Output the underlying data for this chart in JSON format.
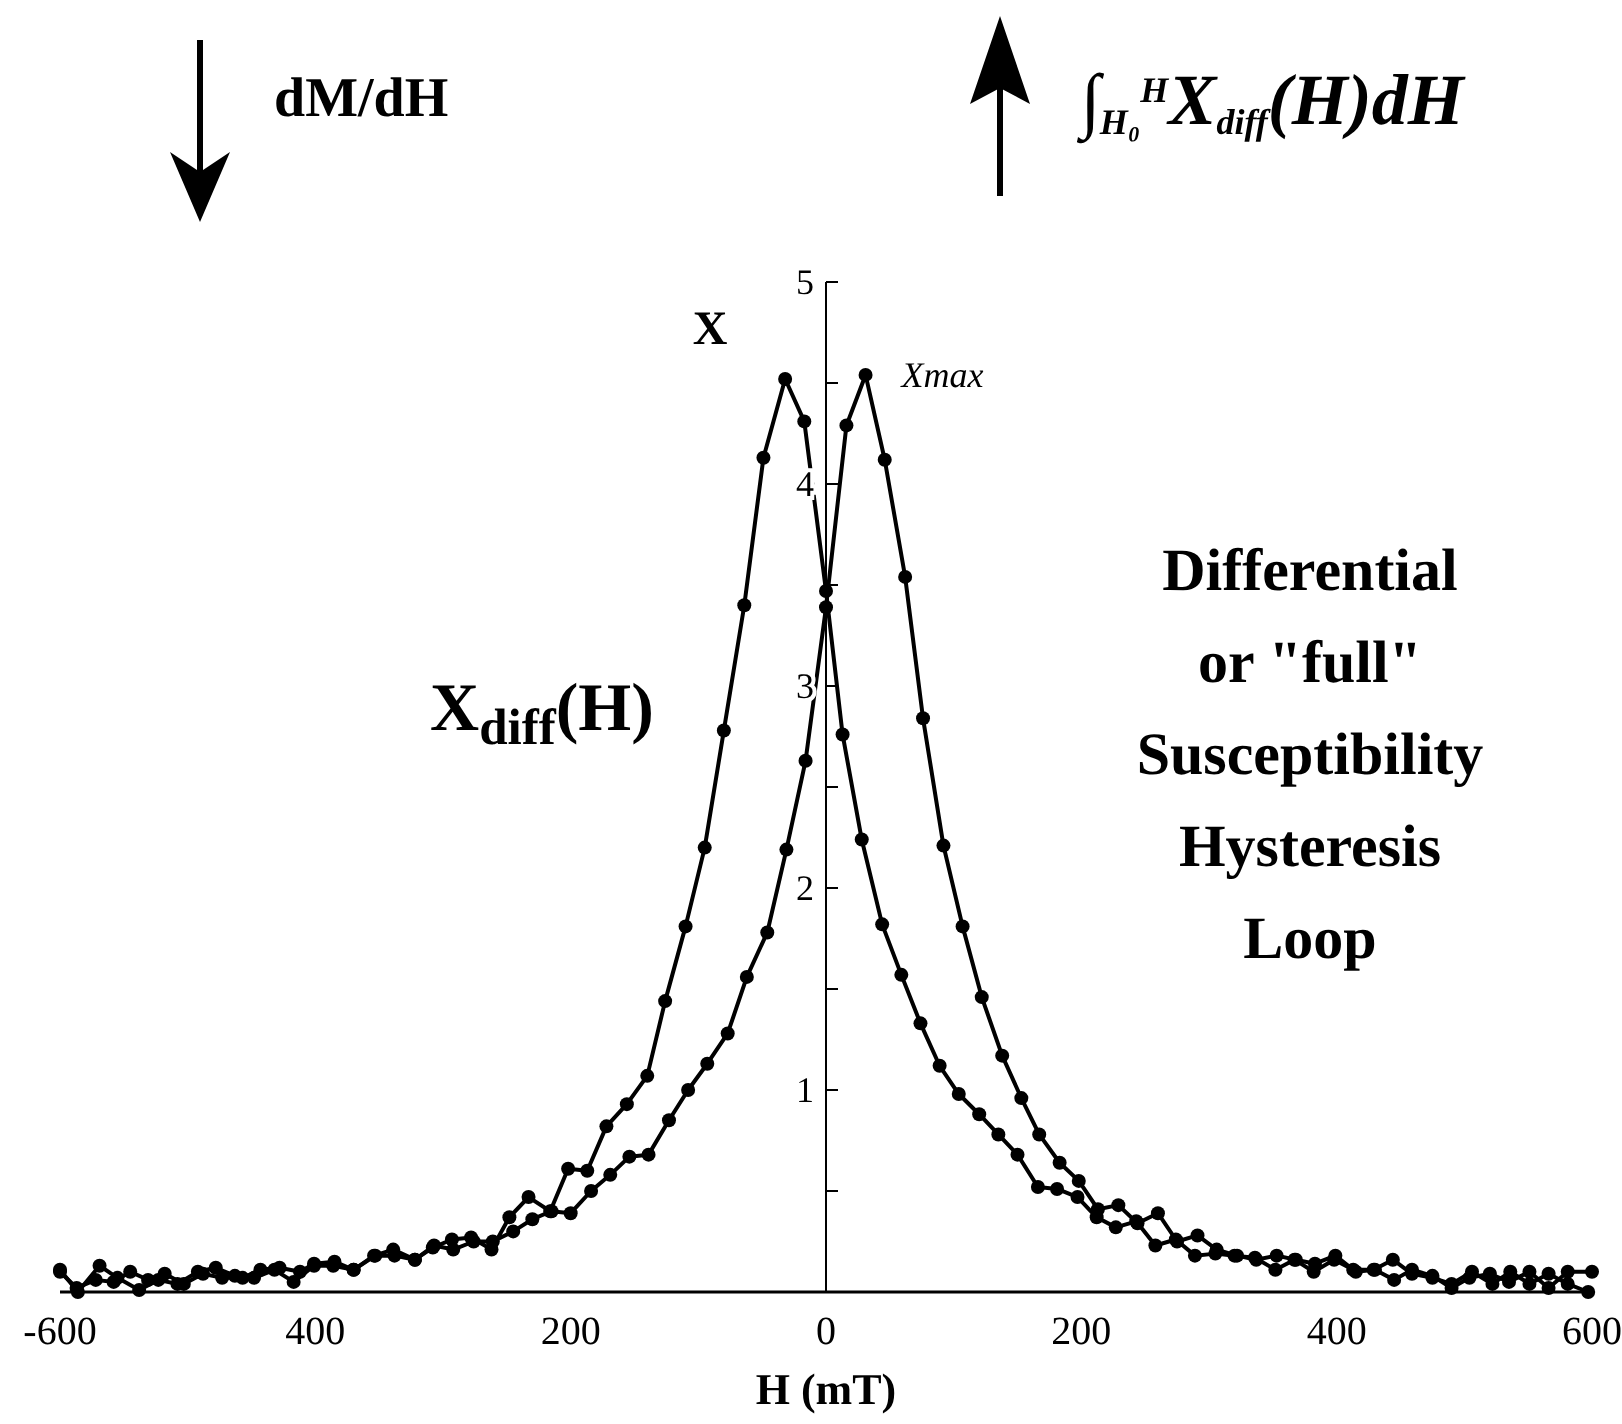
{
  "chart_data": {
    "type": "line",
    "xlabel": "H (mT)",
    "ylabel": "X",
    "xlim": [
      -600,
      600
    ],
    "ylim": [
      0,
      5
    ],
    "xticks": [
      -600,
      {
        "value": -400,
        "label": "400"
      },
      {
        "value": -200,
        "label": "200"
      },
      0,
      200,
      400,
      600
    ],
    "yticks": [
      {
        "value": 0.5,
        "label": null
      },
      1,
      {
        "value": 1.5,
        "label": null
      },
      2,
      {
        "value": 2.5,
        "label": null
      },
      3,
      {
        "value": 3.5,
        "label": null
      },
      4,
      {
        "value": 4.5,
        "label": null
      },
      5
    ],
    "grid": false,
    "marker": "circle",
    "line_style": "solid",
    "series": [
      {
        "color": "#000000",
        "x": [
          -600,
          -586,
          -569,
          -555,
          -538,
          -523,
          -508,
          -492,
          -478,
          -463,
          -448,
          -432,
          -417,
          -401,
          -386,
          -370,
          -354,
          -339,
          -322,
          -308,
          -293,
          -278,
          -262,
          -248,
          -233,
          -216,
          -202,
          -187,
          -172,
          -156,
          -140,
          -126,
          -110,
          -95,
          -80,
          -64,
          -49,
          -32,
          -17,
          0,
          13,
          28,
          44,
          59,
          74,
          89,
          104,
          120,
          135,
          150,
          166,
          181,
          197,
          212,
          227,
          243,
          258,
          274,
          289,
          305,
          320,
          336,
          352,
          367,
          382,
          398,
          413,
          429,
          444,
          459,
          475,
          490,
          506,
          522,
          536,
          551,
          566,
          581,
          597
        ],
        "values": [
          0.11,
          0,
          0.13,
          0.07,
          0.01,
          0.06,
          0.04,
          0.1,
          0.12,
          0.08,
          0.07,
          0.11,
          0.05,
          0.13,
          0.13,
          0.11,
          0.18,
          0.21,
          0.16,
          0.22,
          0.26,
          0.27,
          0.21,
          0.37,
          0.47,
          0.4,
          0.61,
          0.6,
          0.82,
          0.93,
          1.07,
          1.44,
          1.81,
          2.2,
          2.78,
          3.4,
          4.13,
          4.52,
          4.31,
          3.47,
          2.76,
          2.24,
          1.82,
          1.57,
          1.33,
          1.12,
          0.98,
          0.88,
          0.78,
          0.68,
          0.52,
          0.51,
          0.47,
          0.37,
          0.32,
          0.35,
          0.23,
          0.26,
          0.18,
          0.19,
          0.18,
          0.17,
          0.11,
          0.16,
          0.1,
          0.16,
          0.11,
          0.11,
          0.16,
          0.09,
          0.07,
          0.04,
          0.1,
          0.04,
          0.1,
          0.04,
          0.09,
          0.04,
          0
        ]
      },
      {
        "color": "#000000",
        "x": [
          -600,
          -587,
          -572,
          -558,
          -545,
          -531,
          -518,
          -503,
          -488,
          -473,
          -457,
          -443,
          -428,
          -412,
          -401,
          -385,
          -370,
          -353,
          -338,
          -322,
          -307,
          -292,
          -276,
          -261,
          -245,
          -230,
          -215,
          -200,
          -184,
          -169,
          -154,
          -139,
          -123,
          -108,
          -93,
          -77,
          -62,
          -46,
          -31,
          -16,
          0,
          16,
          31,
          46,
          62,
          76,
          92,
          107,
          122,
          138,
          153,
          167,
          183,
          198,
          213,
          229,
          244,
          260,
          275,
          291,
          306,
          322,
          337,
          353,
          368,
          383,
          399,
          415,
          430,
          445,
          459,
          475,
          490,
          504,
          520,
          535,
          551,
          566,
          581,
          600
        ],
        "values": [
          0.1,
          0.02,
          0.06,
          0.05,
          0.1,
          0.06,
          0.09,
          0.04,
          0.09,
          0.07,
          0.07,
          0.11,
          0.12,
          0.1,
          0.14,
          0.15,
          0.11,
          0.18,
          0.18,
          0.16,
          0.23,
          0.21,
          0.25,
          0.25,
          0.3,
          0.36,
          0.4,
          0.39,
          0.5,
          0.58,
          0.67,
          0.68,
          0.85,
          1.0,
          1.13,
          1.28,
          1.56,
          1.78,
          2.19,
          2.63,
          3.39,
          4.29,
          4.54,
          4.12,
          3.54,
          2.84,
          2.21,
          1.81,
          1.46,
          1.17,
          0.96,
          0.78,
          0.64,
          0.55,
          0.41,
          0.43,
          0.34,
          0.39,
          0.25,
          0.28,
          0.21,
          0.18,
          0.16,
          0.18,
          0.16,
          0.14,
          0.18,
          0.1,
          0.11,
          0.06,
          0.11,
          0.08,
          0.02,
          0.07,
          0.09,
          0.05,
          0.1,
          0.02,
          0.1,
          0.1
        ]
      }
    ],
    "annotations": [
      {
        "text": "Xmax",
        "x": 31,
        "y": 4.54
      },
      "X$_{diff}$(H)",
      "Differential\nor \"full\"\nSusceptibility\nHysteresis\nLoop",
      "dM/dH",
      "∫$_{H₀}$$^{H}$X$_{diff}$(H)dH"
    ]
  }
}
